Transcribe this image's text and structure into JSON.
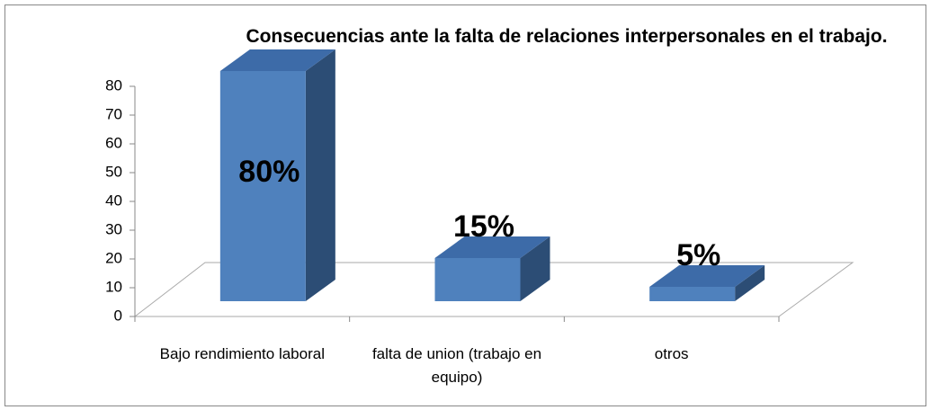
{
  "chart_data": {
    "type": "bar3d",
    "title": "Consecuencias ante la falta de relaciones interpersonales en el trabajo.",
    "categories": [
      "Bajo rendimiento laboral",
      "falta de union (trabajo en equipo)",
      "otros"
    ],
    "values": [
      80,
      15,
      5
    ],
    "value_labels": [
      "80%",
      "15%",
      "5%"
    ],
    "color": "#4f81bd",
    "ylim": [
      0,
      80
    ],
    "yticks": [
      0,
      10,
      20,
      30,
      40,
      50,
      60,
      70,
      80
    ]
  }
}
